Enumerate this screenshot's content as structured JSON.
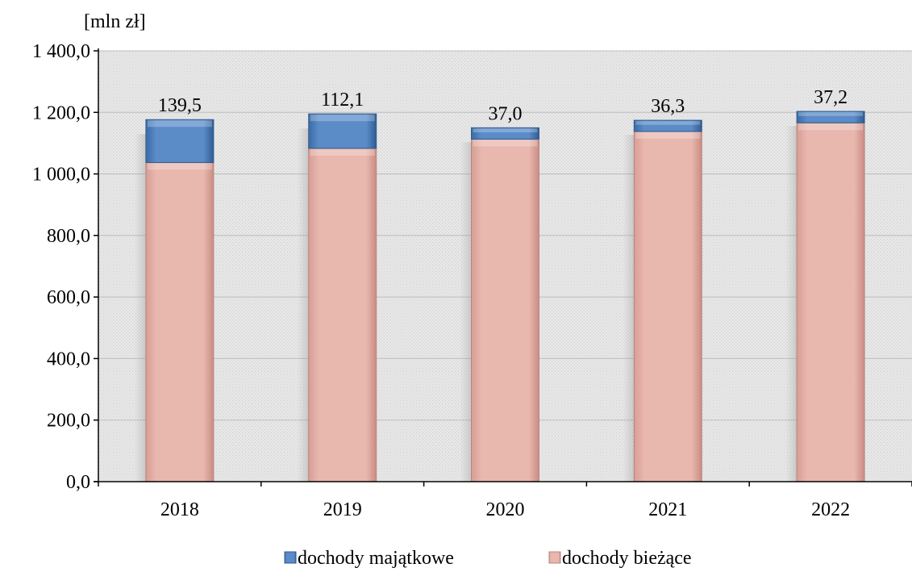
{
  "chart_data": {
    "type": "bar",
    "stacked": true,
    "unit_label": "[mln zł]",
    "categories": [
      "2018",
      "2019",
      "2020",
      "2021",
      "2022"
    ],
    "series": [
      {
        "name": "dochody bieżące",
        "color": "#E8B7AE",
        "values": [
          1037,
          1083,
          1113,
          1138,
          1166
        ]
      },
      {
        "name": "dochody majątkowe",
        "color": "#4F81BD",
        "values": [
          139.5,
          112.1,
          37.0,
          36.3,
          37.2
        ],
        "labels": [
          "139,5",
          "112,1",
          "37,0",
          "36,3",
          "37,2"
        ]
      }
    ],
    "y_ticks": [
      "0,0",
      "200,0",
      "400,0",
      "600,0",
      "800,0",
      "1 000,0",
      "1 200,0",
      "1 400,0"
    ],
    "ylim": [
      0,
      1400
    ],
    "y_step": 200,
    "grid": true,
    "plot_background": "#E3E3E3",
    "legend_position": "bottom"
  }
}
